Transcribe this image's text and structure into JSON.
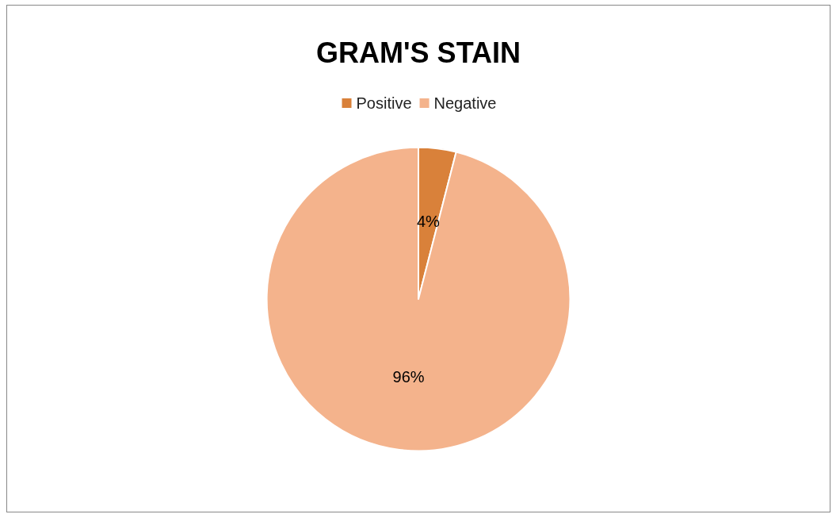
{
  "chart_data": {
    "type": "pie",
    "title": "GRAM'S STAIN",
    "categories": [
      "Positive",
      "Negative"
    ],
    "values": [
      4,
      96
    ],
    "colors": [
      "#d9813a",
      "#f4b38c"
    ],
    "value_labels": [
      "4%",
      "96%"
    ],
    "legend": "top"
  }
}
